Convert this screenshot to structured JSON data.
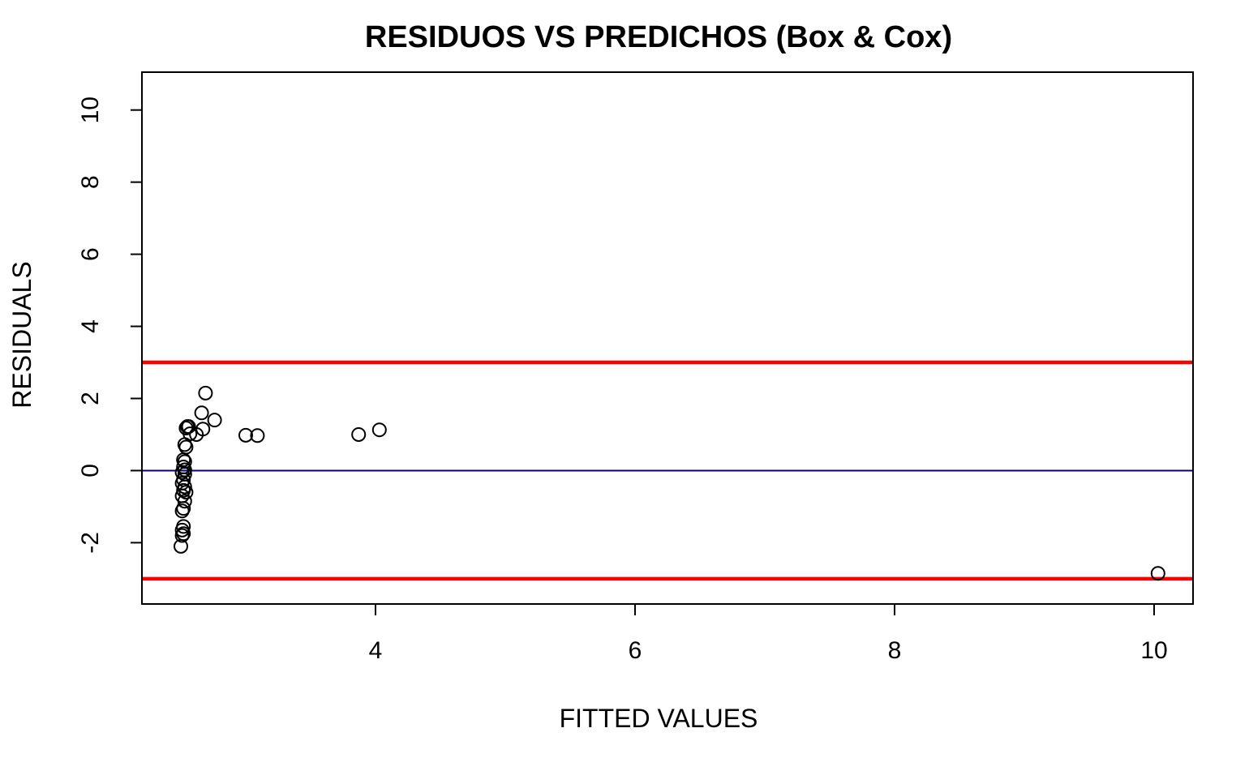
{
  "chart_data": {
    "type": "scatter",
    "title": "RESIDUOS VS PREDICHOS (Box & Cox)",
    "xlabel": "FITTED VALUES",
    "ylabel": "RESIDUALS",
    "xlim": [
      2.2,
      10.3
    ],
    "ylim": [
      -3.7,
      11.05
    ],
    "x_ticks": [
      4,
      6,
      8,
      10
    ],
    "x_tick_labels": [
      "4",
      "6",
      "8",
      "10"
    ],
    "y_ticks": [
      -2,
      0,
      2,
      4,
      6,
      8,
      10
    ],
    "y_tick_labels": [
      "-2",
      "0",
      "2",
      "4",
      "6",
      "8",
      "10"
    ],
    "grid": false,
    "hlines": [
      {
        "y": 3,
        "color": "#ff0000"
      },
      {
        "y": 0,
        "color": "#000080"
      },
      {
        "y": -3,
        "color": "#ff0000"
      }
    ],
    "points": [
      {
        "x": 2.69,
        "y": 2.15
      },
      {
        "x": 2.66,
        "y": 1.6
      },
      {
        "x": 2.76,
        "y": 1.4
      },
      {
        "x": 2.67,
        "y": 1.15
      },
      {
        "x": 2.55,
        "y": 1.22
      },
      {
        "x": 2.56,
        "y": 1.22
      },
      {
        "x": 2.54,
        "y": 1.18
      },
      {
        "x": 2.57,
        "y": 1.02
      },
      {
        "x": 2.62,
        "y": 1.0
      },
      {
        "x": 3.0,
        "y": 0.98
      },
      {
        "x": 3.09,
        "y": 0.97
      },
      {
        "x": 3.87,
        "y": 1.0
      },
      {
        "x": 4.03,
        "y": 1.13
      },
      {
        "x": 2.53,
        "y": 0.72
      },
      {
        "x": 2.54,
        "y": 0.65
      },
      {
        "x": 2.52,
        "y": 0.3
      },
      {
        "x": 2.53,
        "y": 0.25
      },
      {
        "x": 2.52,
        "y": 0.1
      },
      {
        "x": 2.53,
        "y": 0.02
      },
      {
        "x": 2.51,
        "y": -0.05
      },
      {
        "x": 2.53,
        "y": -0.1
      },
      {
        "x": 2.52,
        "y": -0.25
      },
      {
        "x": 2.51,
        "y": -0.35
      },
      {
        "x": 2.53,
        "y": -0.45
      },
      {
        "x": 2.52,
        "y": -0.55
      },
      {
        "x": 2.54,
        "y": -0.6
      },
      {
        "x": 2.51,
        "y": -0.7
      },
      {
        "x": 2.53,
        "y": -0.85
      },
      {
        "x": 2.52,
        "y": -1.05
      },
      {
        "x": 2.51,
        "y": -1.12
      },
      {
        "x": 2.52,
        "y": -1.55
      },
      {
        "x": 2.51,
        "y": -1.65
      },
      {
        "x": 2.52,
        "y": -1.75
      },
      {
        "x": 2.51,
        "y": -1.8
      },
      {
        "x": 2.5,
        "y": -2.1
      },
      {
        "x": 10.03,
        "y": -2.85
      }
    ]
  }
}
